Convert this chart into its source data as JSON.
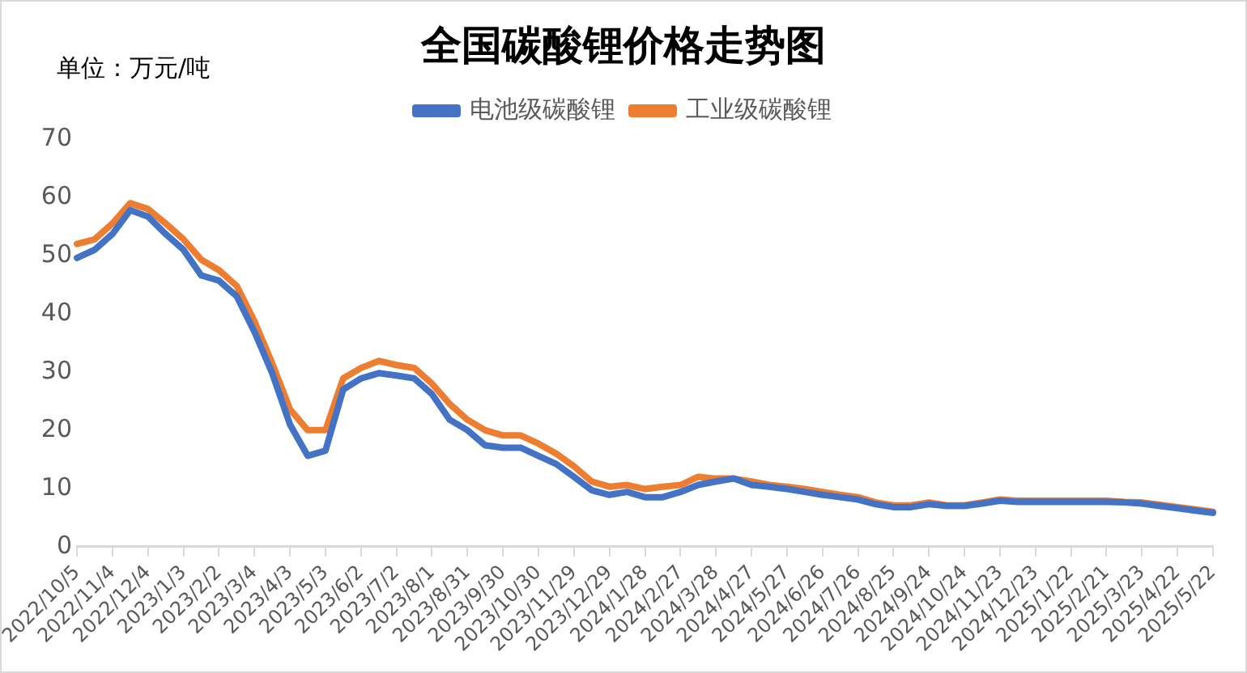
{
  "chart_data": {
    "type": "line",
    "title": "全国碳酸锂价格走势图",
    "annotations": [
      "单位：万元/吨"
    ],
    "categories": [
      "2022/10/5",
      null,
      "2022/11/4",
      null,
      "2022/12/4",
      null,
      "2023/1/3",
      null,
      "2023/2/2",
      null,
      "2023/3/4",
      null,
      "2023/4/3",
      null,
      "2023/5/3",
      null,
      "2023/6/2",
      null,
      "2023/7/2",
      null,
      "2023/8/1",
      null,
      "2023/8/31",
      null,
      "2023/9/30",
      null,
      "2023/10/30",
      null,
      "2023/11/29",
      null,
      "2023/12/29",
      null,
      "2024/1/28",
      null,
      "2024/2/27",
      null,
      "2024/3/28",
      null,
      "2024/4/27",
      null,
      "2024/5/27",
      null,
      "2024/6/26",
      null,
      "2024/7/26",
      null,
      "2024/8/25",
      null,
      "2024/9/24",
      null,
      "2024/10/24",
      null,
      "2024/11/23",
      null,
      "2024/12/23",
      null,
      "2025/1/22",
      null,
      "2025/2/21",
      null,
      "2025/3/23",
      null,
      "2025/4/22",
      null,
      "2025/5/22"
    ],
    "series": [
      {
        "name": "电池级碳酸锂",
        "color": "#4472c4",
        "values": [
          49.6,
          51,
          53.7,
          57.8,
          56.7,
          53.7,
          51,
          46.6,
          45.7,
          43,
          36.9,
          29.8,
          21,
          15.6,
          16.5,
          27,
          28.9,
          29.8,
          29.4,
          28.9,
          26.2,
          21.8,
          20,
          17.4,
          17,
          17,
          15.6,
          14.2,
          12,
          9.7,
          8.9,
          9.4,
          8.5,
          8.5,
          9.4,
          10.6,
          11.2,
          11.7,
          10.6,
          10.3,
          9.9,
          9.4,
          8.9,
          8.5,
          8.1,
          7.3,
          6.8,
          6.8,
          7.3,
          7,
          7,
          7.4,
          7.9,
          7.7,
          7.7,
          7.7,
          7.7,
          7.7,
          7.7,
          7.6,
          7.4,
          7,
          6.6,
          6.2,
          5.8
        ]
      },
      {
        "name": "工业级碳酸锂",
        "color": "#ed7d31",
        "values": [
          52,
          52.8,
          55.5,
          59,
          58,
          55.5,
          52.8,
          49.3,
          47.5,
          44.8,
          38.7,
          31.5,
          23.6,
          20,
          20,
          28.9,
          30.7,
          31.9,
          31.2,
          30.7,
          28,
          24.5,
          21.8,
          20,
          19.1,
          19.1,
          17.7,
          16,
          13.8,
          11.2,
          10.3,
          10.6,
          9.9,
          10.3,
          10.6,
          12,
          11.7,
          11.7,
          11.2,
          10.6,
          10.3,
          9.9,
          9.4,
          8.9,
          8.5,
          7.6,
          7.1,
          7.1,
          7.6,
          7.1,
          7.1,
          7.6,
          8.1,
          7.9,
          7.9,
          7.9,
          7.9,
          7.9,
          7.9,
          7.7,
          7.6,
          7.2,
          6.8,
          6.4,
          6
        ]
      }
    ],
    "ylim": [
      0,
      70
    ],
    "yticks": [
      0,
      10,
      20,
      30,
      40,
      50,
      60,
      70
    ],
    "grid": false,
    "legend": "top",
    "marker": "none",
    "line_style": "solid"
  }
}
